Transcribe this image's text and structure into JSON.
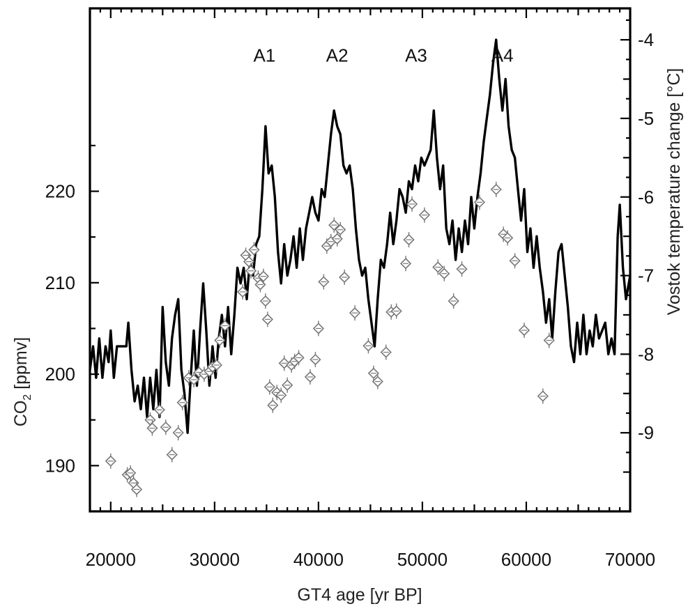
{
  "chart_data": {
    "type": "line",
    "xlabel": "GT4 age [yr BP]",
    "xlim": [
      18000,
      70000
    ],
    "x_ticks": [
      20000,
      30000,
      40000,
      50000,
      60000,
      70000
    ],
    "x_tick_labels": [
      "20000",
      "30000",
      "40000",
      "50000",
      "60000",
      "70000"
    ],
    "left_axis": {
      "label_main": "CO",
      "label_sub": "2",
      "label_rest": " [ppmv]",
      "ylim": [
        185,
        240
      ],
      "ticks": [
        190,
        200,
        210,
        220
      ],
      "tick_labels": [
        "190",
        "200",
        "210",
        "220"
      ]
    },
    "right_axis": {
      "label": "Vostok temperature change [°C]",
      "ylim": [
        -10.0,
        -3.6
      ],
      "ticks": [
        -4,
        -5,
        -6,
        -7,
        -8,
        -9
      ],
      "tick_labels": [
        "-4",
        "-5",
        "-6",
        "-7",
        "-8",
        "-9"
      ]
    },
    "annotations": [
      {
        "text": "A1",
        "x": 34800,
        "temp": -4.2
      },
      {
        "text": "A2",
        "x": 41800,
        "temp": -4.2
      },
      {
        "text": "A3",
        "x": 49400,
        "temp": -4.2
      },
      {
        "text": "A4",
        "x": 57700,
        "temp": -4.2
      }
    ],
    "series": [
      {
        "kind": "temperature-line",
        "axis": "right",
        "color": "#000000",
        "points": [
          [
            18000,
            -8.2
          ],
          [
            18300,
            -7.9
          ],
          [
            18600,
            -8.3
          ],
          [
            18900,
            -7.8
          ],
          [
            19200,
            -8.3
          ],
          [
            19500,
            -7.9
          ],
          [
            19800,
            -8.1
          ],
          [
            20000,
            -7.7
          ],
          [
            20300,
            -8.3
          ],
          [
            20600,
            -7.9
          ],
          [
            20900,
            -7.9
          ],
          [
            21200,
            -7.9
          ],
          [
            21500,
            -7.9
          ],
          [
            21700,
            -7.6
          ],
          [
            22000,
            -8.2
          ],
          [
            22300,
            -8.6
          ],
          [
            22600,
            -8.4
          ],
          [
            22900,
            -8.7
          ],
          [
            23200,
            -8.3
          ],
          [
            23500,
            -8.8
          ],
          [
            23800,
            -8.3
          ],
          [
            24100,
            -8.7
          ],
          [
            24400,
            -8.2
          ],
          [
            24700,
            -8.8
          ],
          [
            25000,
            -7.4
          ],
          [
            25300,
            -8.1
          ],
          [
            25600,
            -8.4
          ],
          [
            25900,
            -7.8
          ],
          [
            26200,
            -7.5
          ],
          [
            26500,
            -7.3
          ],
          [
            26800,
            -8.2
          ],
          [
            27100,
            -8.5
          ],
          [
            27400,
            -9.0
          ],
          [
            27700,
            -8.3
          ],
          [
            28000,
            -7.7
          ],
          [
            28300,
            -8.4
          ],
          [
            28600,
            -7.7
          ],
          [
            28900,
            -7.1
          ],
          [
            29200,
            -7.7
          ],
          [
            29500,
            -8.4
          ],
          [
            29800,
            -7.9
          ],
          [
            30100,
            -8.3
          ],
          [
            30400,
            -7.8
          ],
          [
            30700,
            -7.5
          ],
          [
            31000,
            -7.9
          ],
          [
            31300,
            -7.4
          ],
          [
            31600,
            -8.0
          ],
          [
            31900,
            -7.5
          ],
          [
            32200,
            -6.9
          ],
          [
            32500,
            -7.1
          ],
          [
            32800,
            -6.9
          ],
          [
            33100,
            -7.3
          ],
          [
            33400,
            -6.8
          ],
          [
            33700,
            -7.0
          ],
          [
            34000,
            -6.6
          ],
          [
            34300,
            -6.5
          ],
          [
            34600,
            -5.9
          ],
          [
            34900,
            -5.1
          ],
          [
            35200,
            -5.7
          ],
          [
            35500,
            -5.6
          ],
          [
            35800,
            -6.0
          ],
          [
            36100,
            -6.7
          ],
          [
            36400,
            -7.1
          ],
          [
            36700,
            -6.6
          ],
          [
            37000,
            -7.0
          ],
          [
            37300,
            -6.8
          ],
          [
            37600,
            -6.5
          ],
          [
            37900,
            -6.9
          ],
          [
            38200,
            -6.4
          ],
          [
            38500,
            -6.8
          ],
          [
            38800,
            -6.4
          ],
          [
            39100,
            -6.2
          ],
          [
            39400,
            -6.0
          ],
          [
            39700,
            -6.2
          ],
          [
            40000,
            -6.3
          ],
          [
            40300,
            -5.9
          ],
          [
            40600,
            -6.0
          ],
          [
            40900,
            -5.6
          ],
          [
            41200,
            -5.2
          ],
          [
            41500,
            -4.9
          ],
          [
            41800,
            -5.1
          ],
          [
            42100,
            -5.2
          ],
          [
            42400,
            -5.6
          ],
          [
            42700,
            -5.7
          ],
          [
            43000,
            -5.6
          ],
          [
            43300,
            -5.9
          ],
          [
            43600,
            -6.4
          ],
          [
            43900,
            -6.8
          ],
          [
            44200,
            -7.0
          ],
          [
            44500,
            -6.9
          ],
          [
            44800,
            -7.3
          ],
          [
            45100,
            -7.6
          ],
          [
            45400,
            -7.9
          ],
          [
            45700,
            -7.3
          ],
          [
            46000,
            -6.8
          ],
          [
            46300,
            -6.9
          ],
          [
            46600,
            -6.6
          ],
          [
            46900,
            -6.2
          ],
          [
            47200,
            -6.6
          ],
          [
            47500,
            -6.3
          ],
          [
            47800,
            -5.9
          ],
          [
            48100,
            -6.0
          ],
          [
            48400,
            -6.2
          ],
          [
            48700,
            -5.8
          ],
          [
            49000,
            -5.9
          ],
          [
            49300,
            -5.6
          ],
          [
            49600,
            -5.8
          ],
          [
            49900,
            -5.5
          ],
          [
            50200,
            -5.6
          ],
          [
            50500,
            -5.5
          ],
          [
            50800,
            -5.4
          ],
          [
            51100,
            -4.9
          ],
          [
            51400,
            -5.5
          ],
          [
            51700,
            -5.9
          ],
          [
            52000,
            -5.6
          ],
          [
            52300,
            -6.4
          ],
          [
            52600,
            -6.6
          ],
          [
            52900,
            -6.3
          ],
          [
            53200,
            -6.8
          ],
          [
            53500,
            -6.4
          ],
          [
            53800,
            -6.7
          ],
          [
            54100,
            -6.3
          ],
          [
            54400,
            -6.6
          ],
          [
            54700,
            -6.0
          ],
          [
            55000,
            -6.4
          ],
          [
            55300,
            -6.0
          ],
          [
            55600,
            -5.7
          ],
          [
            55900,
            -5.3
          ],
          [
            56200,
            -5.0
          ],
          [
            56500,
            -4.7
          ],
          [
            56800,
            -4.3
          ],
          [
            57100,
            -4.0
          ],
          [
            57400,
            -4.5
          ],
          [
            57700,
            -4.9
          ],
          [
            58000,
            -4.5
          ],
          [
            58300,
            -5.1
          ],
          [
            58600,
            -5.4
          ],
          [
            58900,
            -5.5
          ],
          [
            59200,
            -5.9
          ],
          [
            59500,
            -6.3
          ],
          [
            59800,
            -5.9
          ],
          [
            60100,
            -6.7
          ],
          [
            60400,
            -6.4
          ],
          [
            60700,
            -6.9
          ],
          [
            61000,
            -6.5
          ],
          [
            61300,
            -6.9
          ],
          [
            61600,
            -7.2
          ],
          [
            61900,
            -7.6
          ],
          [
            62200,
            -7.3
          ],
          [
            62500,
            -7.8
          ],
          [
            62800,
            -7.2
          ],
          [
            63100,
            -6.7
          ],
          [
            63400,
            -6.6
          ],
          [
            63700,
            -7.0
          ],
          [
            64000,
            -7.4
          ],
          [
            64300,
            -7.9
          ],
          [
            64600,
            -8.1
          ],
          [
            64900,
            -7.6
          ],
          [
            65200,
            -8.0
          ],
          [
            65500,
            -7.5
          ],
          [
            65800,
            -8.0
          ],
          [
            66100,
            -7.7
          ],
          [
            66400,
            -7.9
          ],
          [
            66700,
            -7.5
          ],
          [
            67000,
            -7.8
          ],
          [
            67300,
            -7.7
          ],
          [
            67600,
            -7.6
          ],
          [
            67900,
            -8.0
          ],
          [
            68200,
            -7.8
          ],
          [
            68500,
            -8.0
          ],
          [
            68800,
            -6.5
          ],
          [
            69000,
            -6.1
          ],
          [
            69300,
            -6.9
          ],
          [
            69600,
            -7.3
          ],
          [
            70000,
            -7.0
          ]
        ]
      },
      {
        "kind": "co2-points",
        "axis": "left",
        "color": "#777777",
        "points": [
          [
            20000,
            190.5
          ],
          [
            21600,
            189.0
          ],
          [
            21900,
            189.2
          ],
          [
            22200,
            188.1
          ],
          [
            22500,
            187.4
          ],
          [
            23800,
            195.0
          ],
          [
            24000,
            194.1
          ],
          [
            24700,
            196.1
          ],
          [
            25300,
            194.2
          ],
          [
            25900,
            191.2
          ],
          [
            26500,
            193.6
          ],
          [
            26900,
            196.9
          ],
          [
            27500,
            199.6
          ],
          [
            28000,
            199.4
          ],
          [
            28500,
            200.2
          ],
          [
            29000,
            200.0
          ],
          [
            29500,
            200.3
          ],
          [
            29800,
            200.8
          ],
          [
            30200,
            201.0
          ],
          [
            30500,
            203.7
          ],
          [
            31000,
            205.3
          ],
          [
            32700,
            209.0
          ],
          [
            33000,
            213.0
          ],
          [
            33300,
            212.3
          ],
          [
            33500,
            211.3
          ],
          [
            33800,
            213.6
          ],
          [
            34200,
            210.5
          ],
          [
            34400,
            209.8
          ],
          [
            34700,
            210.7
          ],
          [
            34900,
            208.0
          ],
          [
            35100,
            206.0
          ],
          [
            35300,
            198.6
          ],
          [
            35600,
            196.6
          ],
          [
            36000,
            198.0
          ],
          [
            36400,
            197.7
          ],
          [
            36700,
            201.2
          ],
          [
            37000,
            198.8
          ],
          [
            37400,
            201.0
          ],
          [
            37700,
            201.4
          ],
          [
            38100,
            201.8
          ],
          [
            39200,
            199.7
          ],
          [
            39700,
            201.6
          ],
          [
            40000,
            205.0
          ],
          [
            40500,
            210.1
          ],
          [
            40800,
            214.0
          ],
          [
            41200,
            214.5
          ],
          [
            41500,
            216.3
          ],
          [
            41800,
            214.8
          ],
          [
            42100,
            215.8
          ],
          [
            42500,
            210.6
          ],
          [
            43500,
            206.7
          ],
          [
            44800,
            203.1
          ],
          [
            45300,
            200.1
          ],
          [
            45700,
            199.2
          ],
          [
            46500,
            202.4
          ],
          [
            47000,
            206.8
          ],
          [
            47500,
            206.9
          ],
          [
            48400,
            212.1
          ],
          [
            48700,
            214.7
          ],
          [
            49000,
            218.6
          ],
          [
            50200,
            217.4
          ],
          [
            51500,
            211.7
          ],
          [
            52100,
            211.0
          ],
          [
            53000,
            208.0
          ],
          [
            53800,
            211.5
          ],
          [
            55500,
            218.8
          ],
          [
            57100,
            220.2
          ],
          [
            57800,
            215.3
          ],
          [
            58200,
            214.9
          ],
          [
            58900,
            212.4
          ],
          [
            59800,
            204.8
          ],
          [
            61600,
            197.6
          ],
          [
            62200,
            203.7
          ]
        ]
      }
    ],
    "grid": false,
    "legend": "none"
  }
}
